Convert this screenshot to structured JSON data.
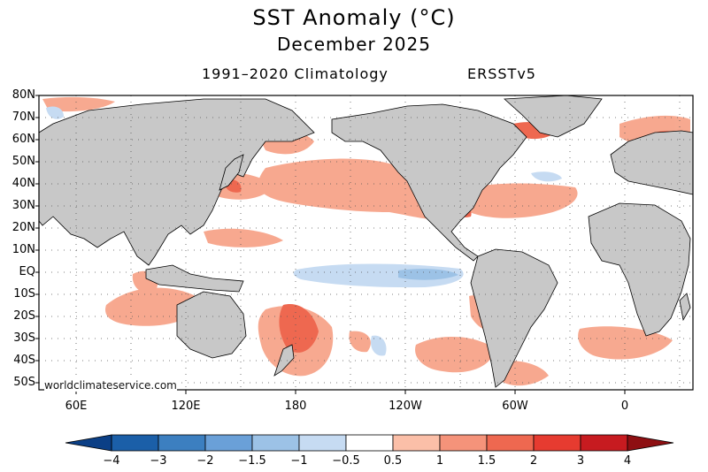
{
  "title": "SST Anomaly (°C)",
  "subtitle": "December 2025",
  "climatology": "1991–2020 Climatology",
  "dataset": "ERSSTv5",
  "credit": "worldclimateservice.com",
  "lat_labels": [
    "80N",
    "70N",
    "60N",
    "50N",
    "40N",
    "30N",
    "20N",
    "10N",
    "EQ",
    "10S",
    "20S",
    "30S",
    "40S",
    "50S"
  ],
  "lon_labels": [
    "60E",
    "120E",
    "180",
    "120W",
    "60W",
    "0"
  ],
  "colorbar": {
    "labels": [
      "−4",
      "−3",
      "−2",
      "−1.5",
      "−1",
      "−0.5",
      "0.5",
      "1",
      "1.5",
      "2",
      "3",
      "4"
    ],
    "colors": [
      "#1b5fa8",
      "#3c7fc0",
      "#6aa0d8",
      "#9cc2e6",
      "#c6dbf2",
      "#ffffff",
      "#fbbfa8",
      "#f5937a",
      "#ee6850",
      "#e63b30",
      "#c71b20"
    ],
    "low_arrow": "#0b3f86",
    "high_arrow": "#8e0f12"
  },
  "colors": {
    "land": "#c8c8c8",
    "coast": "#000000",
    "ocean": "#ffffff"
  }
}
